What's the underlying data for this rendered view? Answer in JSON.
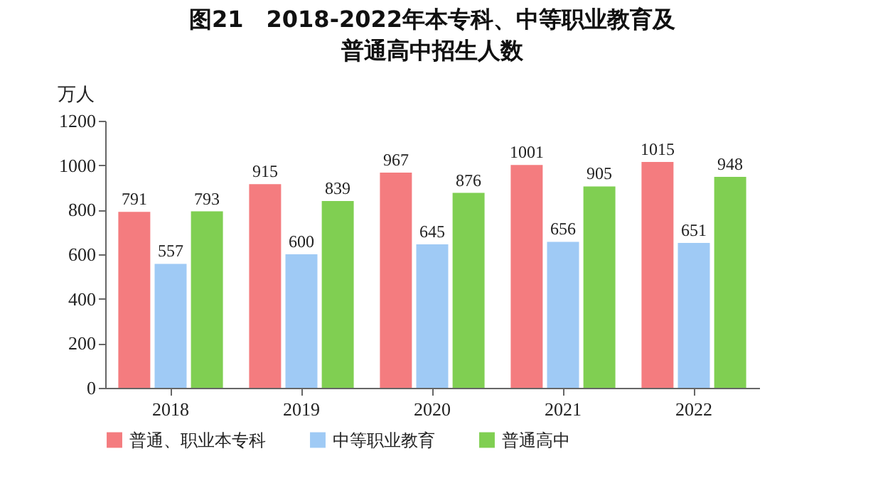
{
  "chart_data": {
    "type": "bar",
    "title": "图21　2018-2022年本专科、中等职业教育及普通高中招生人数",
    "ylabel": "万人",
    "categories": [
      "2018",
      "2019",
      "2020",
      "2021",
      "2022"
    ],
    "series": [
      {
        "name": "普通、职业本专科",
        "color": "#f47c7f",
        "values": [
          791,
          915,
          967,
          1001,
          1015
        ]
      },
      {
        "name": "中等职业教育",
        "color": "#9fcaf5",
        "values": [
          557,
          600,
          645,
          656,
          651
        ]
      },
      {
        "name": "普通高中",
        "color": "#80cf52",
        "values": [
          793,
          839,
          876,
          905,
          948
        ]
      }
    ],
    "ylim": [
      0,
      1200
    ],
    "yticks": [
      0,
      200,
      400,
      600,
      800,
      1000,
      1200
    ],
    "data_labels": true,
    "legend": "bottom",
    "grid": false
  }
}
